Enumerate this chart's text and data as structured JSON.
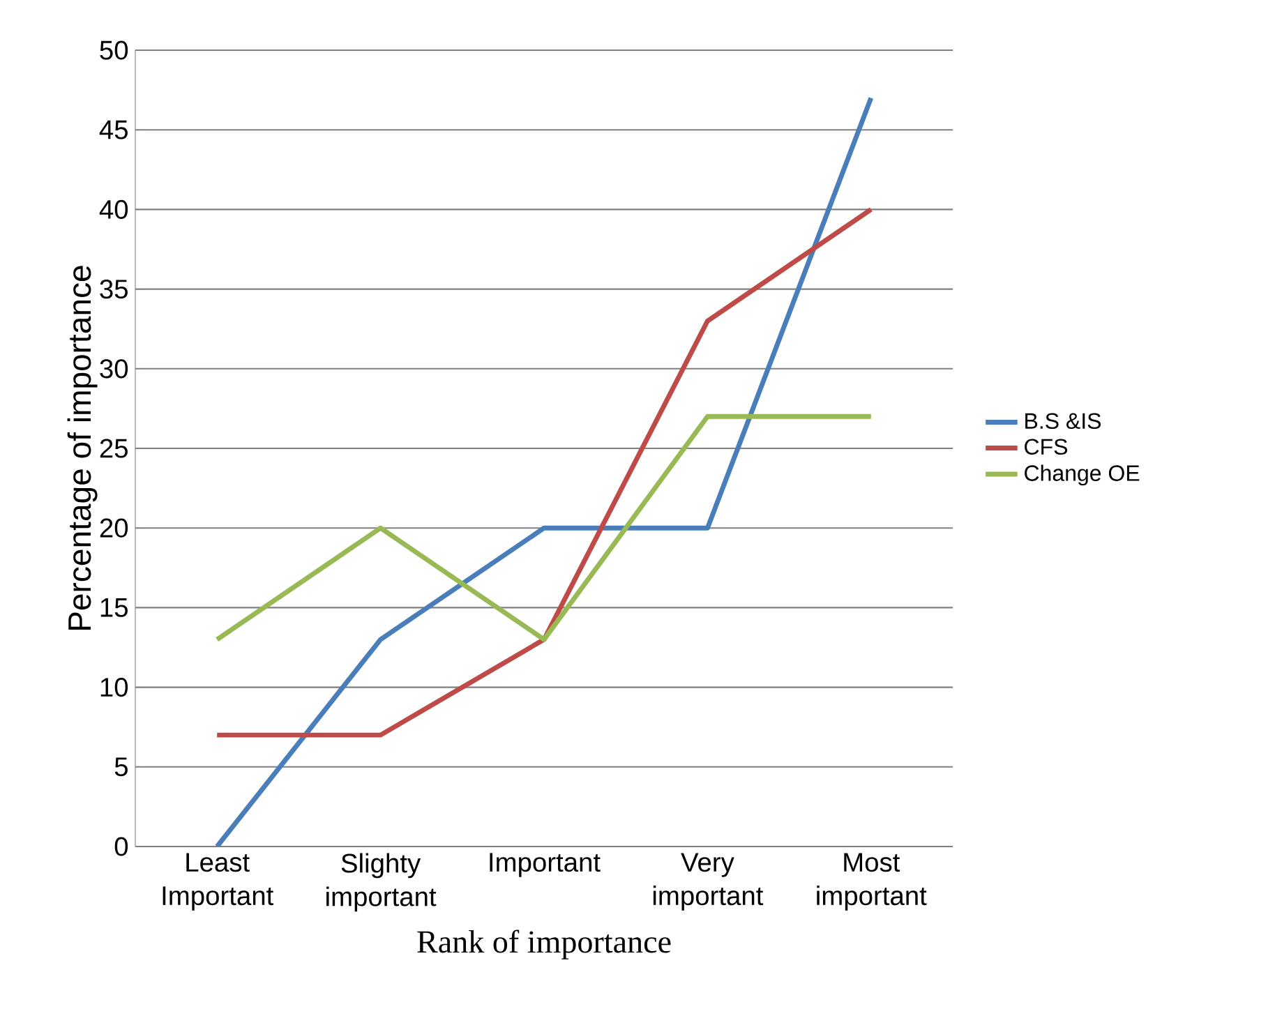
{
  "chart_data": {
    "type": "line",
    "xlabel": "Rank of importance",
    "ylabel": "Percentage of  importance",
    "categories": [
      "Least Important",
      "Slighty important",
      "Important",
      "Very important",
      "Most important"
    ],
    "series": [
      {
        "name": "B.S &IS",
        "color": "#4a7ebb",
        "values": [
          0,
          13,
          20,
          20,
          47
        ]
      },
      {
        "name": "CFS",
        "color": "#be4b48",
        "values": [
          7,
          7,
          13,
          33,
          40
        ]
      },
      {
        "name": "Change OE",
        "color": "#98b954",
        "values": [
          13,
          20,
          13,
          27,
          27
        ]
      }
    ],
    "ylim": [
      0,
      50
    ],
    "yticks": [
      0,
      5,
      10,
      15,
      20,
      25,
      30,
      35,
      40,
      45,
      50
    ],
    "grid": "y",
    "legend": "right",
    "marker": "none",
    "line_style": "solid"
  }
}
